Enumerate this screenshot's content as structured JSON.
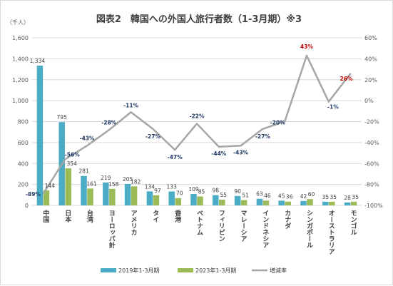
{
  "chart_data": {
    "type": "bar",
    "title": "図表2　韓国への外国人旅行者数（1-3月期）※3",
    "y_unit_label": "（千人）",
    "ylim": [
      0,
      1600
    ],
    "y_ticks": [
      "0",
      "200",
      "400",
      "600",
      "800",
      "1,000",
      "1,200",
      "1,400",
      "1,600"
    ],
    "y2lim": [
      -100,
      60
    ],
    "y2_ticks": [
      "-100%",
      "-80%",
      "-60%",
      "-40%",
      "-20%",
      "0%",
      "20%",
      "40%",
      "60%"
    ],
    "categories": [
      "中国",
      "日本",
      "台湾",
      "ヨーロッパ計",
      "アメリカ",
      "タイ",
      "香港",
      "ベトナム",
      "フィリピン",
      "マレーシア",
      "インドネシア",
      "カナダ",
      "シンガポール",
      "オーストラリア",
      "モンゴル"
    ],
    "series": [
      {
        "name": "2019年1-3月期",
        "color": "#4bacc6",
        "values": [
          1334,
          795,
          281,
          219,
          205,
          134,
          133,
          109,
          98,
          90,
          63,
          45,
          42,
          35,
          28
        ],
        "labels": [
          "1,334",
          "795",
          "281",
          "219",
          "205",
          "134",
          "133",
          "109",
          "98",
          "90",
          "63",
          "45",
          "42",
          "35",
          "28"
        ]
      },
      {
        "name": "2023年1-3月期",
        "color": "#9bbb59",
        "values": [
          144,
          354,
          161,
          158,
          182,
          97,
          70,
          85,
          55,
          51,
          46,
          36,
          60,
          35,
          35
        ],
        "labels": [
          "144",
          "354",
          "161",
          "158",
          "182",
          "97",
          "70",
          "85",
          "55",
          "51",
          "46",
          "36",
          "60",
          "35",
          "35"
        ]
      },
      {
        "name": "増減率",
        "color": "#a6a6a6",
        "axis": "secondary",
        "values": [
          -89,
          -56,
          -43,
          -28,
          -11,
          -27,
          -47,
          -22,
          -44,
          -43,
          -27,
          -20,
          43,
          -1,
          26
        ],
        "labels": [
          "-89%",
          "-56%",
          "-43%",
          "-28%",
          "-11%",
          "-27%",
          "-47%",
          "-22%",
          "-44%",
          "-43%",
          "-27%",
          "-20%",
          "43%",
          "-1%",
          "26%"
        ]
      }
    ],
    "legend_position": "bottom",
    "grid": true,
    "colors": {
      "negative_label": "#1f3864",
      "positive_label": "#c00000",
      "grid": "#d9d9d9",
      "axis_text": "#595959",
      "title": "#404040"
    }
  }
}
